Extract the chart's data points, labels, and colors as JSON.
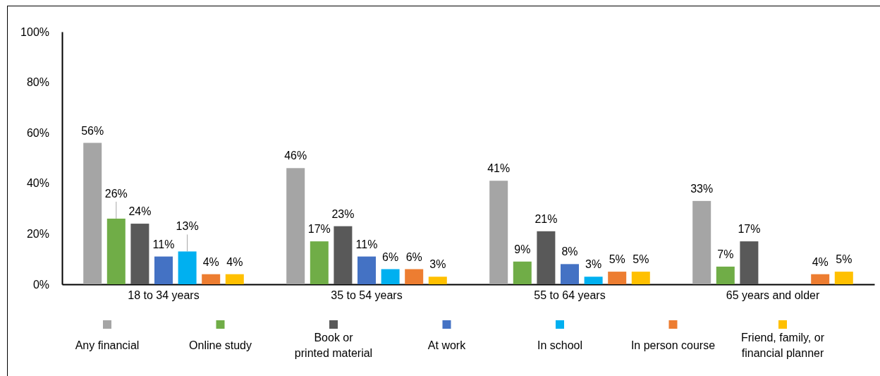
{
  "chart_data": {
    "type": "bar",
    "categories": [
      "18 to 34 years",
      "35 to 54 years",
      "55 to 64 years",
      "65 years and older"
    ],
    "series": [
      {
        "name": "Any financial",
        "color": "#a5a5a5",
        "values": [
          56,
          46,
          41,
          33
        ],
        "value_labels": [
          "56%",
          "46%",
          "41%",
          "33%"
        ]
      },
      {
        "name": "Online study",
        "color": "#70ad47",
        "values": [
          26,
          17,
          9,
          7
        ],
        "value_labels": [
          "26%",
          "17%",
          "9%",
          "7%"
        ]
      },
      {
        "name": "Book or printed material",
        "color": "#595959",
        "values": [
          24,
          23,
          21,
          17
        ],
        "value_labels": [
          "24%",
          "23%",
          "21%",
          "17%"
        ]
      },
      {
        "name": "At work",
        "color": "#4472c4",
        "values": [
          11,
          11,
          8,
          null
        ],
        "value_labels": [
          "11%",
          "11%",
          "8%",
          null
        ]
      },
      {
        "name": "In school",
        "color": "#00b0f0",
        "values": [
          13,
          6,
          3,
          null
        ],
        "value_labels": [
          "13%",
          "6%",
          "3%",
          null
        ]
      },
      {
        "name": "In person course",
        "color": "#ed7d31",
        "values": [
          4,
          6,
          5,
          4
        ],
        "value_labels": [
          "4%",
          "6%",
          "5%",
          "4%"
        ]
      },
      {
        "name": "Friend, family, or financial planner",
        "color": "#ffc000",
        "values": [
          4,
          3,
          5,
          5
        ],
        "value_labels": [
          "4%",
          "3%",
          "5%",
          "5%"
        ]
      }
    ],
    "ylim": [
      0,
      100
    ],
    "yticks": [
      {
        "value": 0,
        "label": "0%"
      },
      {
        "value": 20,
        "label": "20%"
      },
      {
        "value": 40,
        "label": "40%"
      },
      {
        "value": 60,
        "label": "60%"
      },
      {
        "value": 80,
        "label": "80%"
      },
      {
        "value": 100,
        "label": "100%"
      }
    ],
    "legend": "bottom",
    "grid": false
  }
}
